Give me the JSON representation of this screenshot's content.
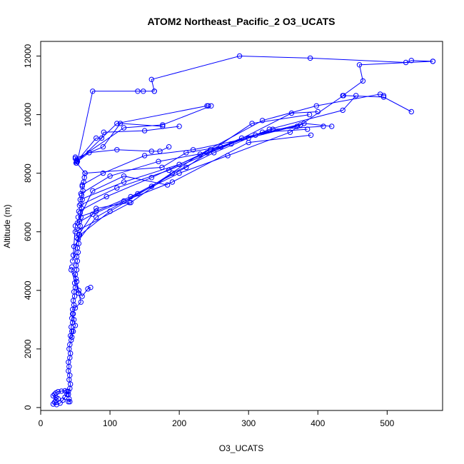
{
  "chart_data": {
    "type": "line",
    "title": "ATOM2 Northeast_Pacific_2 O3_UCATS",
    "xlabel": "O3_UCATS",
    "ylabel": "Altitude (m)",
    "xlim": [
      0,
      580
    ],
    "ylim": [
      -100,
      12500
    ],
    "xticks": [
      0,
      100,
      200,
      300,
      400,
      500
    ],
    "yticks": [
      0,
      2000,
      4000,
      6000,
      8000,
      10000,
      12000
    ],
    "grid": false,
    "series_color": "#0000ff",
    "marker": "open-circle",
    "series": [
      {
        "points": [
          [
            40,
            200
          ],
          [
            42,
            200
          ],
          [
            41,
            300
          ],
          [
            40,
            450
          ],
          [
            38,
            550
          ],
          [
            35,
            570
          ],
          [
            30,
            560
          ],
          [
            25,
            540
          ],
          [
            22,
            500
          ],
          [
            20,
            450
          ],
          [
            18,
            400
          ],
          [
            22,
            350
          ],
          [
            25,
            300
          ],
          [
            22,
            250
          ],
          [
            20,
            180
          ],
          [
            18,
            120
          ],
          [
            23,
            100
          ],
          [
            28,
            150
          ],
          [
            32,
            250
          ],
          [
            35,
            350
          ],
          [
            38,
            450
          ],
          [
            40,
            550
          ],
          [
            42,
            650
          ],
          [
            43,
            800
          ],
          [
            41,
            950
          ],
          [
            42,
            1100
          ],
          [
            40,
            1250
          ],
          [
            41,
            1400
          ],
          [
            40,
            1550
          ],
          [
            42,
            1700
          ],
          [
            43,
            1850
          ],
          [
            41,
            2000
          ],
          [
            42,
            2150
          ],
          [
            44,
            2300
          ],
          [
            43,
            2450
          ],
          [
            45,
            2600
          ],
          [
            44,
            2750
          ],
          [
            46,
            2900
          ],
          [
            45,
            3050
          ],
          [
            47,
            3200
          ],
          [
            46,
            3350
          ],
          [
            48,
            3500
          ],
          [
            47,
            3650
          ],
          [
            49,
            3800
          ],
          [
            48,
            3950
          ],
          [
            50,
            4100
          ],
          [
            49,
            4250
          ],
          [
            51,
            4400
          ],
          [
            50,
            4550
          ],
          [
            52,
            4700
          ],
          [
            51,
            4850
          ],
          [
            53,
            5000
          ],
          [
            52,
            5150
          ],
          [
            54,
            5300
          ],
          [
            53,
            5450
          ],
          [
            55,
            5600
          ],
          [
            54,
            5750
          ],
          [
            56,
            5900
          ],
          [
            55,
            6050
          ],
          [
            57,
            6200
          ],
          [
            56,
            6350
          ],
          [
            58,
            6500
          ],
          [
            57,
            6650
          ],
          [
            59,
            6800
          ],
          [
            58,
            6950
          ],
          [
            60,
            7100
          ],
          [
            59,
            7250
          ],
          [
            61,
            7400
          ],
          [
            60,
            7550
          ],
          [
            62,
            7700
          ],
          [
            63,
            7850
          ],
          [
            64,
            8000
          ]
        ]
      },
      {
        "points": [
          [
            64,
            8000
          ],
          [
            175,
            8200
          ],
          [
            210,
            8700
          ],
          [
            260,
            8900
          ],
          [
            310,
            9300
          ],
          [
            370,
            9600
          ]
        ]
      },
      {
        "points": [
          [
            60,
            7600
          ],
          [
            90,
            8000
          ],
          [
            150,
            8600
          ],
          [
            220,
            8800
          ],
          [
            300,
            9200
          ],
          [
            375,
            9650
          ]
        ]
      },
      {
        "points": [
          [
            58,
            7300
          ],
          [
            100,
            7900
          ],
          [
            170,
            8400
          ],
          [
            240,
            8700
          ],
          [
            320,
            9400
          ],
          [
            385,
            9500
          ]
        ]
      },
      {
        "points": [
          [
            57,
            7100
          ],
          [
            120,
            7700
          ],
          [
            200,
            8300
          ],
          [
            290,
            9200
          ],
          [
            380,
            9700
          ],
          [
            420,
            9600
          ]
        ]
      },
      {
        "points": [
          [
            56,
            6900
          ],
          [
            110,
            7500
          ],
          [
            185,
            8100
          ],
          [
            275,
            9000
          ],
          [
            362,
            10050
          ],
          [
            400,
            10100
          ]
        ]
      },
      {
        "points": [
          [
            55,
            6700
          ],
          [
            95,
            7200
          ],
          [
            160,
            7850
          ],
          [
            245,
            8800
          ],
          [
            335,
            9500
          ],
          [
            408,
            9600
          ]
        ]
      },
      {
        "points": [
          [
            54,
            6500
          ],
          [
            80,
            6700
          ],
          [
            130,
            7200
          ],
          [
            210,
            8200
          ],
          [
            305,
            9700
          ],
          [
            388,
            10000
          ]
        ]
      },
      {
        "points": [
          [
            53,
            6300
          ],
          [
            75,
            6600
          ],
          [
            120,
            7050
          ],
          [
            190,
            7700
          ],
          [
            300,
            9050
          ],
          [
            390,
            9300
          ]
        ]
      },
      {
        "points": [
          [
            50,
            6000
          ],
          [
            130,
            7000
          ],
          [
            190,
            8000
          ],
          [
            250,
            8700
          ],
          [
            330,
            9500
          ],
          [
            436,
            10150
          ],
          [
            455,
            10650
          ]
        ]
      },
      {
        "points": [
          [
            52,
            5800
          ],
          [
            100,
            6700
          ],
          [
            160,
            7550
          ],
          [
            230,
            8650
          ],
          [
            320,
            9800
          ],
          [
            398,
            10300
          ],
          [
            490,
            10700
          ],
          [
            495,
            10650
          ]
        ]
      },
      {
        "points": [
          [
            48,
            5500
          ],
          [
            80,
            6500
          ],
          [
            140,
            7300
          ],
          [
            200,
            8000
          ],
          [
            270,
            8600
          ],
          [
            360,
            9400
          ],
          [
            437,
            10650
          ],
          [
            495,
            10600
          ],
          [
            535,
            10100
          ]
        ]
      },
      {
        "points": [
          [
            47,
            5200
          ],
          [
            50,
            6200
          ],
          [
            75,
            7400
          ],
          [
            120,
            7900
          ],
          [
            183,
            7600
          ]
        ]
      },
      {
        "points": [
          [
            46,
            5000
          ],
          [
            55,
            5900
          ],
          [
            80,
            6800
          ],
          [
            128,
            7000
          ]
        ]
      },
      {
        "points": [
          [
            45,
            4800
          ],
          [
            52,
            4300
          ],
          [
            55,
            4000
          ],
          [
            60,
            3800
          ],
          [
            68,
            4050
          ],
          [
            72,
            4100
          ]
        ]
      },
      {
        "points": [
          [
            44,
            4700
          ],
          [
            55,
            3900
          ],
          [
            58,
            3600
          ],
          [
            50,
            3400
          ],
          [
            46,
            3200
          ],
          [
            48,
            3000
          ],
          [
            50,
            2800
          ],
          [
            47,
            2600
          ],
          [
            45,
            2400
          ]
        ]
      },
      {
        "points": [
          [
            64,
            8000
          ],
          [
            52,
            8350
          ],
          [
            50,
            8550
          ],
          [
            53,
            8400
          ],
          [
            70,
            8700
          ],
          [
            110,
            8800
          ],
          [
            160,
            8750
          ],
          [
            172,
            8750
          ],
          [
            185,
            8900
          ]
        ]
      },
      {
        "points": [
          [
            52,
            8400
          ],
          [
            80,
            9200
          ],
          [
            88,
            9200
          ],
          [
            91,
            9400
          ],
          [
            150,
            9450
          ],
          [
            200,
            9600
          ]
        ]
      },
      {
        "points": [
          [
            50,
            8500
          ],
          [
            90,
            8900
          ],
          [
            115,
            9700
          ],
          [
            176,
            9600
          ]
        ]
      },
      {
        "points": [
          [
            52,
            8450
          ],
          [
            120,
            9550
          ],
          [
            176,
            9650
          ],
          [
            246,
            10300
          ]
        ]
      },
      {
        "points": [
          [
            51,
            8350
          ],
          [
            110,
            9700
          ],
          [
            240,
            10300
          ],
          [
            242,
            10300
          ]
        ]
      },
      {
        "points": [
          [
            53,
            8400
          ],
          [
            75,
            10800
          ],
          [
            140,
            10800
          ],
          [
            148,
            10800
          ],
          [
            164,
            10800
          ]
        ]
      },
      {
        "points": [
          [
            164,
            10800
          ],
          [
            160,
            11200
          ],
          [
            287,
            12000
          ],
          [
            389,
            11930
          ],
          [
            527,
            11780
          ],
          [
            535,
            11850
          ],
          [
            566,
            11820
          ]
        ]
      },
      {
        "points": [
          [
            566,
            11820
          ],
          [
            460,
            11700
          ],
          [
            465,
            11150
          ],
          [
            436,
            10650
          ]
        ]
      }
    ]
  }
}
